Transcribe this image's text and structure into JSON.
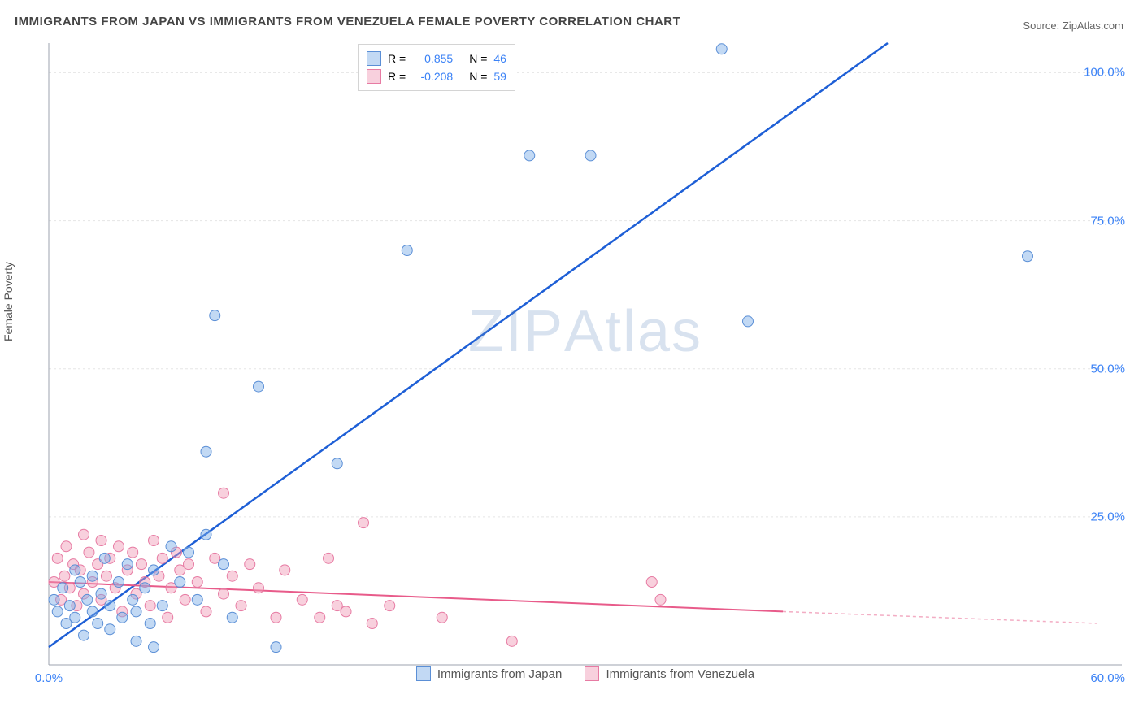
{
  "title": "IMMIGRANTS FROM JAPAN VS IMMIGRANTS FROM VENEZUELA FEMALE POVERTY CORRELATION CHART",
  "source_label": "Source:",
  "source_site": "ZipAtlas.com",
  "ylabel": "Female Poverty",
  "watermark": "ZIPAtlas",
  "chart": {
    "type": "scatter",
    "xlim": [
      0,
      60
    ],
    "ylim": [
      0,
      105
    ],
    "xtick_labels": [
      "0.0%",
      "60.0%"
    ],
    "xtick_positions": [
      0,
      60
    ],
    "ytick_labels": [
      "25.0%",
      "50.0%",
      "75.0%",
      "100.0%"
    ],
    "ytick_positions": [
      25,
      50,
      75,
      100
    ],
    "grid_color": "#e5e5e5",
    "axis_color": "#9ca3af",
    "background_color": "#ffffff",
    "marker_radius": 6.5
  },
  "series": {
    "japan": {
      "label": "Immigrants from Japan",
      "color_fill": "rgba(120, 170, 230, 0.45)",
      "color_stroke": "#5b8fd6",
      "line_color": "#1e5fd6",
      "r_label": "R =",
      "r_value": "0.855",
      "n_label": "N =",
      "n_value": "46",
      "trend": {
        "x1": 0,
        "y1": 3,
        "x2": 48,
        "y2": 105
      },
      "points": [
        [
          0.5,
          9
        ],
        [
          0.8,
          13
        ],
        [
          1.0,
          7
        ],
        [
          1.2,
          10
        ],
        [
          1.5,
          16
        ],
        [
          1.5,
          8
        ],
        [
          1.8,
          14
        ],
        [
          2.0,
          5
        ],
        [
          2.2,
          11
        ],
        [
          2.5,
          9
        ],
        [
          2.5,
          15
        ],
        [
          2.8,
          7
        ],
        [
          3.0,
          12
        ],
        [
          3.2,
          18
        ],
        [
          3.5,
          10
        ],
        [
          3.5,
          6
        ],
        [
          4.0,
          14
        ],
        [
          4.2,
          8
        ],
        [
          4.5,
          17
        ],
        [
          4.8,
          11
        ],
        [
          5.0,
          9
        ],
        [
          5.0,
          4
        ],
        [
          5.5,
          13
        ],
        [
          5.8,
          7
        ],
        [
          6.0,
          16
        ],
        [
          6.0,
          3
        ],
        [
          6.5,
          10
        ],
        [
          7.0,
          20
        ],
        [
          7.5,
          14
        ],
        [
          8.0,
          19
        ],
        [
          8.5,
          11
        ],
        [
          9.0,
          22
        ],
        [
          9.0,
          36
        ],
        [
          9.5,
          59
        ],
        [
          10.0,
          17
        ],
        [
          10.5,
          8
        ],
        [
          12.0,
          47
        ],
        [
          13.0,
          3
        ],
        [
          16.5,
          34
        ],
        [
          20.5,
          70
        ],
        [
          27.5,
          86
        ],
        [
          31.0,
          86
        ],
        [
          38.5,
          104
        ],
        [
          40.0,
          58
        ],
        [
          56.0,
          69
        ],
        [
          0.3,
          11
        ]
      ]
    },
    "venezuela": {
      "label": "Immigrants from Venezuela",
      "color_fill": "rgba(240, 150, 180, 0.45)",
      "color_stroke": "#e77ba3",
      "line_color": "#e85b8a",
      "r_label": "R =",
      "r_value": "-0.208",
      "n_label": "N =",
      "n_value": "59",
      "trend_solid": {
        "x1": 0,
        "y1": 14,
        "x2": 42,
        "y2": 9
      },
      "trend_dashed": {
        "x1": 42,
        "y1": 9,
        "x2": 60,
        "y2": 7
      },
      "points": [
        [
          0.3,
          14
        ],
        [
          0.5,
          18
        ],
        [
          0.7,
          11
        ],
        [
          0.9,
          15
        ],
        [
          1.0,
          20
        ],
        [
          1.2,
          13
        ],
        [
          1.4,
          17
        ],
        [
          1.6,
          10
        ],
        [
          1.8,
          16
        ],
        [
          2.0,
          22
        ],
        [
          2.0,
          12
        ],
        [
          2.3,
          19
        ],
        [
          2.5,
          14
        ],
        [
          2.8,
          17
        ],
        [
          3.0,
          11
        ],
        [
          3.0,
          21
        ],
        [
          3.3,
          15
        ],
        [
          3.5,
          18
        ],
        [
          3.8,
          13
        ],
        [
          4.0,
          20
        ],
        [
          4.2,
          9
        ],
        [
          4.5,
          16
        ],
        [
          4.8,
          19
        ],
        [
          5.0,
          12
        ],
        [
          5.3,
          17
        ],
        [
          5.5,
          14
        ],
        [
          5.8,
          10
        ],
        [
          6.0,
          21
        ],
        [
          6.3,
          15
        ],
        [
          6.5,
          18
        ],
        [
          6.8,
          8
        ],
        [
          7.0,
          13
        ],
        [
          7.3,
          19
        ],
        [
          7.5,
          16
        ],
        [
          7.8,
          11
        ],
        [
          8.0,
          17
        ],
        [
          8.5,
          14
        ],
        [
          9.0,
          9
        ],
        [
          9.5,
          18
        ],
        [
          10.0,
          12
        ],
        [
          10.0,
          29
        ],
        [
          10.5,
          15
        ],
        [
          11.0,
          10
        ],
        [
          11.5,
          17
        ],
        [
          12.0,
          13
        ],
        [
          13.0,
          8
        ],
        [
          13.5,
          16
        ],
        [
          14.5,
          11
        ],
        [
          15.5,
          8
        ],
        [
          16.0,
          18
        ],
        [
          16.5,
          10
        ],
        [
          17.0,
          9
        ],
        [
          18.0,
          24
        ],
        [
          18.5,
          7
        ],
        [
          19.5,
          10
        ],
        [
          22.5,
          8
        ],
        [
          26.5,
          4
        ],
        [
          34.5,
          14
        ],
        [
          35.0,
          11
        ]
      ]
    }
  }
}
